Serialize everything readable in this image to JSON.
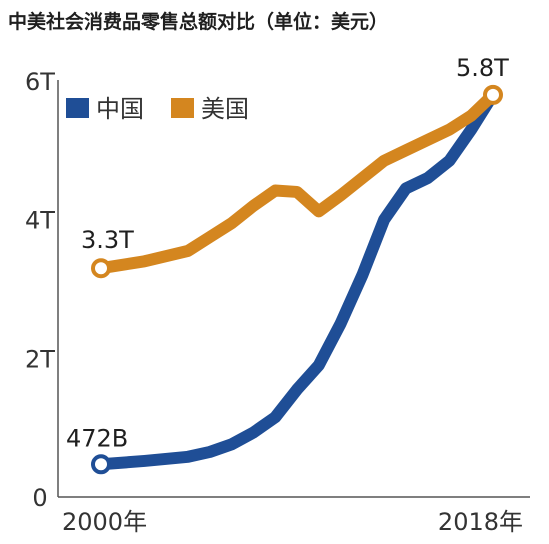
{
  "chart_data": {
    "type": "line",
    "title": "中美社会消费品零售总额对比（单位：美元）",
    "x": [
      2000,
      2002,
      2004,
      2005,
      2006,
      2007,
      2008,
      2009,
      2010,
      2011,
      2012,
      2013,
      2014,
      2015,
      2016,
      2017,
      2018
    ],
    "x_tick_labels": [
      "2000年",
      "2018年"
    ],
    "y_tick_labels": [
      "0",
      "2T",
      "4T",
      "6T"
    ],
    "ylim": [
      0,
      6
    ],
    "y_unit": "T",
    "grid": false,
    "legend_position": "top-left",
    "series": [
      {
        "name": "中国",
        "color": "#1f4e96",
        "values": [
          0.472,
          0.52,
          0.58,
          0.65,
          0.76,
          0.93,
          1.15,
          1.55,
          1.9,
          2.5,
          3.2,
          4.0,
          4.45,
          4.6,
          4.85,
          5.3,
          5.8
        ]
      },
      {
        "name": "美国",
        "color": "#d4861f",
        "values": [
          3.3,
          3.4,
          3.55,
          3.75,
          3.95,
          4.2,
          4.42,
          4.4,
          4.12,
          4.35,
          4.6,
          4.85,
          5.0,
          5.15,
          5.3,
          5.5,
          5.8
        ]
      }
    ],
    "annotations": [
      {
        "text": "3.3T",
        "series": "美国",
        "x": 2000,
        "y": 3.3
      },
      {
        "text": "472B",
        "series": "中国",
        "x": 2000,
        "y": 0.472
      },
      {
        "text": "5.8T",
        "series": "美国",
        "x": 2018,
        "y": 5.8
      }
    ]
  }
}
